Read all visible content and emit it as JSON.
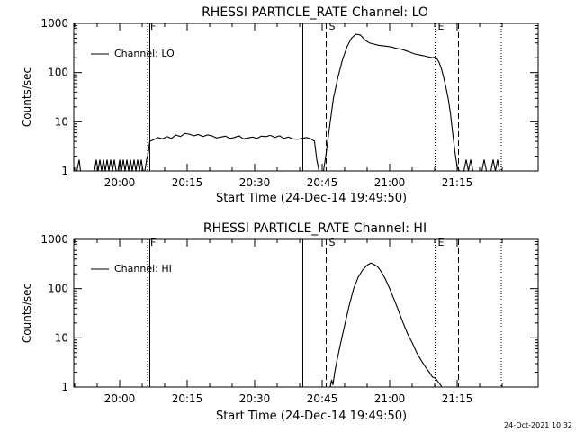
{
  "colors": {
    "background": "#ffffff",
    "ink": "#000000"
  },
  "footer": {
    "stamp": "24-Oct-2021 10:32"
  },
  "chart_data": [
    {
      "type": "line",
      "title": "RHESSI PARTICLE_RATE Channel: LO",
      "xlabel": "Start Time (24-Dec-14 19:49:50)",
      "ylabel": "Counts/sec",
      "y_scale": "log",
      "ylim": [
        1,
        1000
      ],
      "xlim_minutes_of_day": [
        1189.8,
        1293.0
      ],
      "x_ticks": [
        {
          "label": "20:00",
          "t": 1200
        },
        {
          "label": "20:15",
          "t": 1215
        },
        {
          "label": "20:30",
          "t": 1230
        },
        {
          "label": "20:45",
          "t": 1245
        },
        {
          "label": "21:00",
          "t": 1260
        },
        {
          "label": "21:15",
          "t": 1275
        }
      ],
      "y_ticks": [
        {
          "label": "1",
          "v": 1
        },
        {
          "label": "10",
          "v": 10
        },
        {
          "label": "100",
          "v": 100
        },
        {
          "label": "1000",
          "v": 1000
        }
      ],
      "legend": [
        "Channel: LO"
      ],
      "legend_position": "top-left",
      "markers": [
        {
          "label": "F",
          "t": 1206.2,
          "style": "dotted"
        },
        {
          "label": "",
          "t": 1206.7,
          "style": "solid"
        },
        {
          "label": "",
          "t": 1240.7,
          "style": "solid"
        },
        {
          "label": "S",
          "t": 1245.9,
          "style": "dashed"
        },
        {
          "label": "E",
          "t": 1270.1,
          "style": "dotted"
        },
        {
          "label": "",
          "t": 1275.3,
          "style": "dashed"
        },
        {
          "label": "",
          "t": 1284.8,
          "style": "dotted"
        }
      ],
      "series": [
        {
          "name": "Channel: LO",
          "x": [
            1189.9,
            1190.5,
            1191.0,
            1191.3,
            1191.8,
            1192.3,
            1192.6,
            1192.9,
            1193.3,
            1193.7,
            1194.0,
            1194.4,
            1194.8,
            1195.2,
            1195.6,
            1196.0,
            1196.4,
            1196.8,
            1197.2,
            1197.6,
            1198.0,
            1198.4,
            1198.8,
            1199.2,
            1199.6,
            1200.0,
            1200.4,
            1200.8,
            1201.2,
            1201.6,
            1202.0,
            1202.4,
            1202.8,
            1203.2,
            1203.6,
            1204.0,
            1204.4,
            1204.8,
            1205.2,
            1205.6,
            1206.0,
            1206.3,
            1206.7,
            1207.5,
            1208.5,
            1209.5,
            1210.5,
            1211.5,
            1212.5,
            1213.5,
            1214.5,
            1215.5,
            1216.5,
            1217.5,
            1218.5,
            1219.5,
            1220.5,
            1221.5,
            1222.5,
            1223.5,
            1224.5,
            1225.5,
            1226.5,
            1227.5,
            1228.5,
            1229.5,
            1230.5,
            1231.5,
            1232.5,
            1233.5,
            1234.5,
            1235.5,
            1236.5,
            1237.5,
            1238.5,
            1239.5,
            1240.5,
            1241.5,
            1242.5,
            1243.3,
            1243.8,
            1244.3,
            1244.8,
            1245.3,
            1245.8,
            1246.3,
            1246.8,
            1247.5,
            1248.5,
            1249.5,
            1250.5,
            1251.5,
            1252.5,
            1253.5,
            1254.5,
            1255.5,
            1256.5,
            1257.5,
            1258.5,
            1259.5,
            1260.5,
            1261.5,
            1262.5,
            1263.5,
            1264.5,
            1265.5,
            1266.5,
            1267.5,
            1268.5,
            1269.5,
            1270.0,
            1270.5,
            1271.0,
            1271.5,
            1272.0,
            1272.5,
            1273.0,
            1273.5,
            1274.0,
            1274.5,
            1275.0,
            1275.5,
            1276.0,
            1276.5,
            1277.0,
            1277.5,
            1278.0,
            1278.5,
            1279.0,
            1279.5,
            1280.0,
            1280.5,
            1281.0,
            1281.5,
            1282.0,
            1282.5,
            1283.0,
            1283.5,
            1284.0,
            1284.4
          ],
          "values": [
            1,
            1,
            1.7,
            1,
            1,
            1,
            1,
            1,
            1,
            1,
            1,
            1,
            1.7,
            1,
            1.7,
            1,
            1.7,
            1,
            1.7,
            1,
            1.7,
            1,
            1.7,
            1,
            1,
            1.7,
            1,
            1.7,
            1,
            1.7,
            1,
            1.7,
            1,
            1.7,
            1,
            1.7,
            1,
            1.7,
            1,
            1,
            1.7,
            2.2,
            4.0,
            4.3,
            4.8,
            4.5,
            5.0,
            4.6,
            5.4,
            5.0,
            5.8,
            5.6,
            5.2,
            5.5,
            5.0,
            5.4,
            5.2,
            4.7,
            4.9,
            5.1,
            4.6,
            4.8,
            5.2,
            4.5,
            4.7,
            4.9,
            4.6,
            5.1,
            5.0,
            5.3,
            4.8,
            5.2,
            4.6,
            4.9,
            4.5,
            4.4,
            4.6,
            4.8,
            4.5,
            4.0,
            1.7,
            1,
            1,
            1,
            2.0,
            4.5,
            10,
            30,
            80,
            180,
            330,
            500,
            600,
            580,
            460,
            400,
            380,
            360,
            350,
            340,
            330,
            310,
            300,
            280,
            260,
            240,
            230,
            220,
            210,
            200,
            205,
            190,
            160,
            120,
            80,
            50,
            30,
            15,
            6,
            2.5,
            1.2,
            1,
            1,
            1,
            1.7,
            1,
            1.7,
            1,
            1,
            1,
            1,
            1,
            1.7,
            1,
            1,
            1,
            1.7,
            1,
            1.7,
            1
          ]
        }
      ]
    },
    {
      "type": "line",
      "title": "RHESSI PARTICLE_RATE Channel: HI",
      "xlabel": "Start Time (24-Dec-14 19:49:50)",
      "ylabel": "Counts/sec",
      "y_scale": "log",
      "ylim": [
        1,
        1000
      ],
      "xlim_minutes_of_day": [
        1189.8,
        1293.0
      ],
      "x_ticks": [
        {
          "label": "20:00",
          "t": 1200
        },
        {
          "label": "20:15",
          "t": 1215
        },
        {
          "label": "20:30",
          "t": 1230
        },
        {
          "label": "20:45",
          "t": 1245
        },
        {
          "label": "21:00",
          "t": 1260
        },
        {
          "label": "21:15",
          "t": 1275
        }
      ],
      "y_ticks": [
        {
          "label": "1",
          "v": 1
        },
        {
          "label": "10",
          "v": 10
        },
        {
          "label": "100",
          "v": 100
        },
        {
          "label": "1000",
          "v": 1000
        }
      ],
      "legend": [
        "Channel: HI"
      ],
      "legend_position": "top-left",
      "markers": [
        {
          "label": "F",
          "t": 1206.2,
          "style": "dotted"
        },
        {
          "label": "",
          "t": 1206.7,
          "style": "solid"
        },
        {
          "label": "",
          "t": 1240.7,
          "style": "solid"
        },
        {
          "label": "S",
          "t": 1245.9,
          "style": "dashed"
        },
        {
          "label": "E",
          "t": 1270.1,
          "style": "dotted"
        },
        {
          "label": "",
          "t": 1275.3,
          "style": "dashed"
        },
        {
          "label": "",
          "t": 1284.8,
          "style": "dotted"
        }
      ],
      "series": [
        {
          "name": "Channel: HI",
          "x": [
            1246.8,
            1247.1,
            1247.4,
            1247.8,
            1248.3,
            1249.0,
            1250.0,
            1251.0,
            1252.0,
            1253.0,
            1254.0,
            1255.0,
            1255.8,
            1256.5,
            1257.3,
            1258.0,
            1259.0,
            1260.0,
            1261.0,
            1262.0,
            1263.0,
            1264.0,
            1265.0,
            1266.0,
            1267.0,
            1268.0,
            1268.8,
            1269.5,
            1270.2,
            1271.0,
            1271.3,
            1271.6
          ],
          "values": [
            1.0,
            1.4,
            1.1,
            2.0,
            3.5,
            7,
            18,
            45,
            100,
            170,
            240,
            300,
            330,
            310,
            280,
            230,
            160,
            100,
            60,
            35,
            20,
            12,
            8,
            5,
            3.5,
            2.5,
            2.0,
            1.6,
            1.5,
            1.2,
            1.1,
            1.0
          ]
        }
      ]
    }
  ]
}
